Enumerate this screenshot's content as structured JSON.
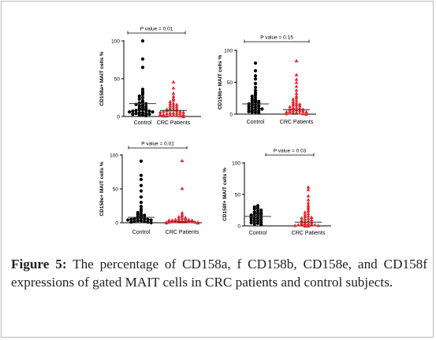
{
  "colors": {
    "control": "#000000",
    "crc": "#e8232a",
    "axis": "#000000"
  },
  "chart_data": [
    {
      "type": "scatter",
      "panel": "CD158a",
      "ylabel": "CD158a+ MAIT cells %",
      "ylim": [
        0,
        100
      ],
      "yticks": [
        "0",
        "50",
        "100"
      ],
      "categories": [
        "Control",
        "CRC Patients"
      ],
      "annotation": "P value = 0.01",
      "series": [
        {
          "category": "Control",
          "marker": "circle",
          "mean": 17,
          "values": [
            100,
            76,
            65,
            36,
            33,
            31,
            29,
            27,
            25,
            23,
            21,
            19,
            18,
            17,
            16,
            15,
            14,
            13,
            12,
            11,
            10,
            9,
            9,
            8,
            8,
            7,
            7,
            6,
            6,
            5,
            5,
            4,
            4,
            3,
            3,
            2,
            2,
            1
          ]
        },
        {
          "category": "CRC Patients",
          "marker": "triangle",
          "mean": 8,
          "values": [
            46,
            38,
            31,
            27,
            24,
            22,
            20,
            18,
            17,
            16,
            15,
            14,
            13,
            12,
            11,
            10,
            10,
            9,
            9,
            8,
            8,
            7,
            7,
            6,
            6,
            5,
            5,
            5,
            4,
            4,
            3,
            3,
            3,
            2,
            2,
            2,
            1,
            1,
            1,
            0
          ]
        }
      ]
    },
    {
      "type": "scatter",
      "panel": "CD158b",
      "ylabel": "CD158b+ MAIT cells %",
      "ylim": [
        0,
        100
      ],
      "yticks": [
        "0",
        "50",
        "100"
      ],
      "categories": [
        "Control",
        "CRC Patients"
      ],
      "annotation": "P value = 0.15",
      "series": [
        {
          "category": "Control",
          "marker": "circle",
          "mean": 16,
          "values": [
            80,
            68,
            60,
            55,
            48,
            42,
            37,
            33,
            30,
            28,
            26,
            24,
            22,
            21,
            20,
            19,
            18,
            17,
            16,
            15,
            14,
            13,
            12,
            11,
            10,
            9,
            8,
            8,
            7,
            6,
            5,
            4,
            3,
            3,
            2
          ]
        },
        {
          "category": "CRC Patients",
          "marker": "triangle",
          "mean": 7,
          "values": [
            84,
            62,
            55,
            50,
            44,
            38,
            33,
            29,
            26,
            24,
            22,
            20,
            18,
            17,
            16,
            15,
            14,
            13,
            12,
            11,
            10,
            9,
            8,
            8,
            7,
            6,
            6,
            5,
            5,
            4,
            4,
            3,
            3,
            2,
            2,
            1,
            1,
            0
          ]
        }
      ]
    },
    {
      "type": "scatter",
      "panel": "CD158e",
      "ylabel": "CD158e+ MAIT cells %",
      "ylim": [
        0,
        100
      ],
      "yticks": [
        "0",
        "50",
        "100"
      ],
      "categories": [
        "Control",
        "CRC Patients"
      ],
      "annotation": "P value = 0.01",
      "series": [
        {
          "category": "Control",
          "marker": "circle",
          "mean": 8,
          "values": [
            91,
            70,
            64,
            55,
            47,
            38,
            30,
            24,
            20,
            17,
            15,
            13,
            12,
            11,
            10,
            9,
            8,
            7,
            7,
            6,
            6,
            5,
            5,
            4,
            4,
            3,
            3,
            2,
            2,
            1,
            1,
            0
          ]
        },
        {
          "category": "CRC Patients",
          "marker": "triangle",
          "mean": 2,
          "values": [
            92,
            51,
            15,
            12,
            10,
            9,
            8,
            7,
            6,
            6,
            5,
            5,
            4,
            4,
            4,
            3,
            3,
            3,
            2,
            2,
            2,
            2,
            1,
            1,
            1,
            1,
            1,
            0,
            0,
            0
          ]
        }
      ]
    },
    {
      "type": "scatter",
      "panel": "CD158f",
      "ylabel": "CD158f+ MAIT cells %",
      "ylim": [
        0,
        100
      ],
      "yticks": [
        "0",
        "50",
        "100"
      ],
      "categories": [
        "Control",
        "CRC Patients"
      ],
      "annotation": "P value = 0.03",
      "series": [
        {
          "category": "Control",
          "marker": "circle",
          "mean": 15,
          "values": [
            32,
            30,
            28,
            27,
            25,
            24,
            22,
            21,
            20,
            19,
            18,
            17,
            16,
            15,
            14,
            13,
            12,
            11,
            10,
            9,
            8,
            7,
            6,
            5,
            4,
            3,
            2
          ]
        },
        {
          "category": "CRC Patients",
          "marker": "triangle",
          "mean": 6,
          "values": [
            62,
            58,
            48,
            42,
            37,
            33,
            30,
            27,
            24,
            22,
            20,
            18,
            16,
            15,
            14,
            13,
            12,
            11,
            10,
            9,
            8,
            7,
            6,
            5,
            4,
            4,
            3,
            3,
            2,
            2,
            1,
            1,
            0,
            0
          ]
        }
      ]
    }
  ],
  "caption": {
    "label": "Figure 5:",
    "text": " The percentage of CD158a, f CD158b, CD158e, and CD158f expressions of gated MAIT cells in CRC patients and control subjects."
  }
}
